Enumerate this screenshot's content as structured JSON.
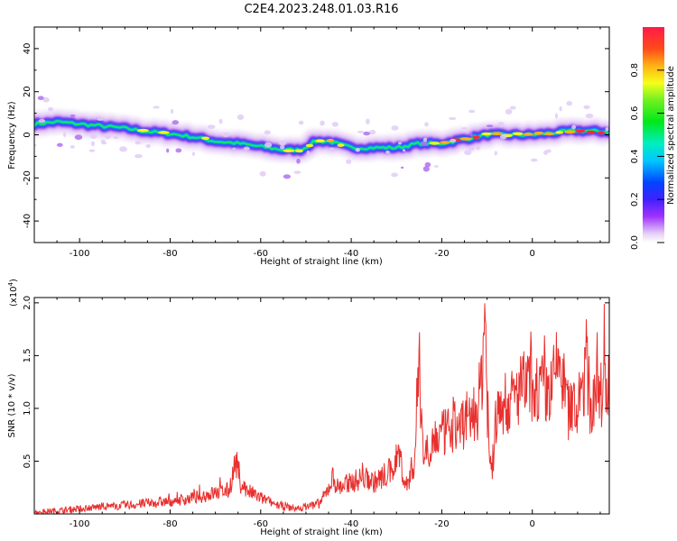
{
  "figure_title": "C2E4.2023.248.01.03.R16",
  "chart_data": [
    {
      "type": "heatmap",
      "title": "C2E4.2023.248.01.03.R16",
      "xlabel": "Height of straight line (km)",
      "ylabel": "Frequency (Hz)",
      "xlim": [
        -110,
        17
      ],
      "ylim": [
        -50,
        50
      ],
      "xticks": [
        -100,
        -80,
        -60,
        -40,
        -20,
        0
      ],
      "yticks": [
        -40,
        -20,
        0,
        20,
        40
      ],
      "colorbar": {
        "label": "Normalized spectral amplitude",
        "range": [
          0,
          1
        ],
        "ticks": [
          0.0,
          0.2,
          0.4,
          0.6,
          0.8
        ],
        "colormap": "rainbow (white-lavender → violet → blue → cyan → green → yellow → orange → red)"
      },
      "ridge_center_hz": {
        "x": [
          -110,
          -105,
          -100,
          -95,
          -90,
          -85,
          -80,
          -75,
          -70,
          -65,
          -60,
          -55,
          -51,
          -48,
          -45,
          -40,
          -35,
          -30,
          -25,
          -20,
          -15,
          -10,
          -5,
          0,
          5,
          10,
          15
        ],
        "y": [
          5,
          6,
          5,
          4,
          3,
          1.5,
          0.5,
          -1,
          -3,
          -4,
          -5.5,
          -7,
          -7,
          -3,
          -3,
          -6,
          -6,
          -6,
          -4,
          -4,
          -2,
          0,
          0,
          0,
          1,
          2,
          1.5
        ]
      },
      "ridge_peak_amplitude": {
        "x": [
          -110,
          -100,
          -90,
          -80,
          -70,
          -60,
          -52,
          -45,
          -40,
          -35,
          -25,
          -20,
          -14,
          -8,
          0,
          5,
          10,
          15
        ],
        "y": [
          0.55,
          0.6,
          0.55,
          0.85,
          0.7,
          0.6,
          0.75,
          0.9,
          0.8,
          0.6,
          0.7,
          0.9,
          0.9,
          0.8,
          0.95,
          0.8,
          0.95,
          0.95
        ]
      }
    },
    {
      "type": "line",
      "xlabel": "Height of straight line (km)",
      "ylabel": "SNR (10 * v/v)",
      "y_multiplier": "(x10^4)",
      "multiplier_base": "(x10",
      "multiplier_exp": "4",
      "multiplier_close": ")",
      "xlim": [
        -110,
        17
      ],
      "ylim": [
        0,
        2.05
      ],
      "xticks": [
        -100,
        -80,
        -60,
        -40,
        -20,
        0
      ],
      "yticks": [
        0.5,
        1.0,
        1.5,
        2.0
      ],
      "ytick_labels": [
        "0.5",
        "1.0",
        "1.5",
        "2.0"
      ],
      "series": [
        {
          "color": "#e8302e",
          "x": [
            -110,
            -105,
            -100,
            -95,
            -90,
            -85,
            -80,
            -75,
            -72,
            -70,
            -67,
            -65.5,
            -64.5,
            -63,
            -60,
            -56,
            -52,
            -49,
            -47,
            -45.5,
            -44,
            -43,
            -40,
            -37,
            -35,
            -31,
            -29.5,
            -28,
            -26,
            -25,
            -24,
            -22,
            -20,
            -18,
            -16,
            -14,
            -12,
            -11,
            -10.5,
            -10,
            -9.5,
            -9,
            -8,
            -7,
            -6,
            -5,
            -4,
            -3,
            -2,
            0,
            2,
            4,
            5,
            6,
            7,
            8,
            10,
            11,
            12,
            13,
            14,
            15,
            16,
            17
          ],
          "y": [
            0.02,
            0.03,
            0.05,
            0.07,
            0.08,
            0.1,
            0.12,
            0.15,
            0.18,
            0.2,
            0.22,
            0.5,
            0.3,
            0.22,
            0.15,
            0.08,
            0.05,
            0.08,
            0.1,
            0.2,
            0.35,
            0.25,
            0.3,
            0.35,
            0.3,
            0.4,
            0.6,
            0.25,
            0.5,
            1.4,
            0.55,
            0.7,
            0.75,
            0.8,
            0.85,
            0.9,
            1.0,
            1.4,
            2.05,
            1.1,
            0.6,
            0.35,
            0.9,
            1.0,
            1.05,
            1.05,
            1.1,
            1.15,
            1.2,
            1.22,
            1.18,
            1.15,
            1.3,
            1.5,
            1.2,
            1.05,
            0.95,
            1.2,
            1.4,
            0.95,
            1.2,
            1.1,
            1.25,
            1.2
          ]
        }
      ]
    }
  ]
}
